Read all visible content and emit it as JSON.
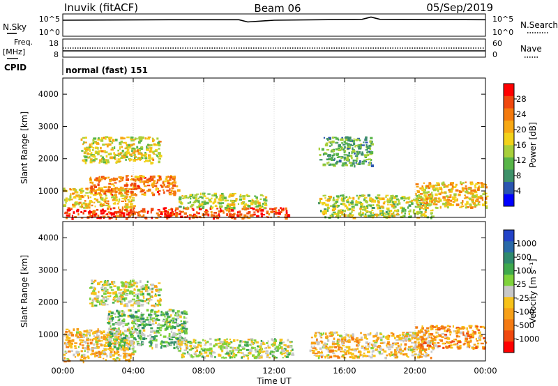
{
  "header": {
    "station": "Inuvik (fitACF)",
    "beam": "Beam 06",
    "date": "05/Sep/2019"
  },
  "noise_panel": {
    "left_label": "N.Sky",
    "right_label": "N.Search",
    "left_ticks": [
      "10^5",
      "10^0"
    ],
    "right_ticks": [
      "10^5",
      "10^0"
    ]
  },
  "freq_panel": {
    "left_label_top": "Freq.",
    "left_label_unit": "[MHz]",
    "right_label": "Nave",
    "left_ticks": [
      "18",
      "8"
    ],
    "right_ticks": [
      "60",
      "0"
    ]
  },
  "cpid": {
    "label": "CPID",
    "mode": "normal (fast) 151"
  },
  "power_panel": {
    "ylabel": "Slant Range [km]",
    "yticks": [
      "4000",
      "3000",
      "2000",
      "1000"
    ],
    "colorbar_label": "Power [dB]",
    "colorbar_ticks": [
      "28",
      "24",
      "20",
      "16",
      "12",
      "8",
      "4"
    ],
    "colors": [
      "#0000ff",
      "#2a55b0",
      "#3e9169",
      "#58b548",
      "#a8cf3a",
      "#f2d21a",
      "#f7a814",
      "#f47a0d",
      "#f0480e",
      "#ff0000"
    ]
  },
  "velocity_panel": {
    "ylabel": "Slant Range [km]",
    "yticks": [
      "4000",
      "3000",
      "2000",
      "1000"
    ],
    "colorbar_label": "Velocity [m s⁻¹]",
    "colorbar_ticks": [
      "1000",
      "500",
      "100",
      "25",
      "-25",
      "-100",
      "-500",
      "-1000"
    ],
    "colors": [
      "#2343c8",
      "#2a6aa8",
      "#2f8a6e",
      "#3fa94d",
      "#7fd23b",
      "#c8c8c8",
      "#f7c21a",
      "#f7a018",
      "#f47a12",
      "#f0480e",
      "#ff0000"
    ]
  },
  "xaxis": {
    "ticks": [
      "00:00",
      "04:00",
      "08:00",
      "12:00",
      "16:00",
      "20:00",
      "00:00"
    ],
    "label": "Time UT"
  },
  "chart_data": [
    {
      "type": "line",
      "title": "Inuvik (fitACF) Beam 06 05/Sep/2019",
      "series": [
        {
          "name": "N.Sky",
          "x_hours": [
            0,
            6,
            10,
            10.5,
            12,
            17,
            17.5,
            18,
            24
          ],
          "values_log10": [
            3.6,
            3.7,
            3.7,
            3.2,
            3.6,
            3.8,
            4.3,
            3.8,
            3.7
          ]
        }
      ],
      "ylim": [
        0,
        5
      ]
    },
    {
      "type": "line",
      "series": [
        {
          "name": "Freq.",
          "x_hours": [
            0,
            24
          ],
          "values": [
            10.5,
            10.5
          ]
        },
        {
          "name": "Nave",
          "x_hours": [
            0,
            24
          ],
          "values": [
            18,
            18
          ]
        }
      ],
      "ylim": [
        8,
        18
      ]
    },
    {
      "type": "heatmap",
      "xlabel": "Time UT",
      "ylabel": "Slant Range [km]",
      "xlim_hours": [
        0,
        24
      ],
      "ylim_km": [
        180,
        4500
      ],
      "colorbar": "Power [dB]",
      "clim": [
        0,
        30
      ],
      "regions": [
        {
          "t0": 0.0,
          "t1": 12.8,
          "r0": 180,
          "r1": 500,
          "value": 26
        },
        {
          "t0": 0.0,
          "t1": 4.0,
          "r0": 500,
          "r1": 1100,
          "value": 18
        },
        {
          "t0": 1.5,
          "t1": 6.5,
          "r0": 900,
          "r1": 1500,
          "value": 22
        },
        {
          "t0": 6.5,
          "t1": 11.5,
          "r0": 500,
          "r1": 950,
          "value": 14
        },
        {
          "t0": 1.0,
          "t1": 5.5,
          "r0": 1900,
          "r1": 2700,
          "value": 16
        },
        {
          "t0": 14.5,
          "t1": 21.0,
          "r0": 200,
          "r1": 900,
          "value": 14
        },
        {
          "t0": 20.0,
          "t1": 24.0,
          "r0": 500,
          "r1": 1300,
          "value": 18
        },
        {
          "t0": 14.5,
          "t1": 17.5,
          "r0": 1800,
          "r1": 2700,
          "value": 10
        }
      ]
    },
    {
      "type": "heatmap",
      "xlabel": "Time UT",
      "ylabel": "Slant Range [km]",
      "xlim_hours": [
        0,
        24
      ],
      "ylim_km": [
        180,
        4500
      ],
      "colorbar": "Velocity [m s-1]",
      "clim": [
        -1000,
        1000
      ],
      "regions": [
        {
          "t0": 0.0,
          "t1": 4.0,
          "r0": 180,
          "r1": 1200,
          "value": -200
        },
        {
          "t0": 2.5,
          "t1": 7.0,
          "r0": 600,
          "r1": 1800,
          "value": 200
        },
        {
          "t0": 1.5,
          "t1": 5.5,
          "r0": 1900,
          "r1": 2700,
          "value": 0
        },
        {
          "t0": 6.5,
          "t1": 13.0,
          "r0": 300,
          "r1": 900,
          "value": 50
        },
        {
          "t0": 14.0,
          "t1": 21.0,
          "r0": 300,
          "r1": 1100,
          "value": -200
        },
        {
          "t0": 20.0,
          "t1": 24.0,
          "r0": 600,
          "r1": 1300,
          "value": -400
        }
      ]
    }
  ]
}
